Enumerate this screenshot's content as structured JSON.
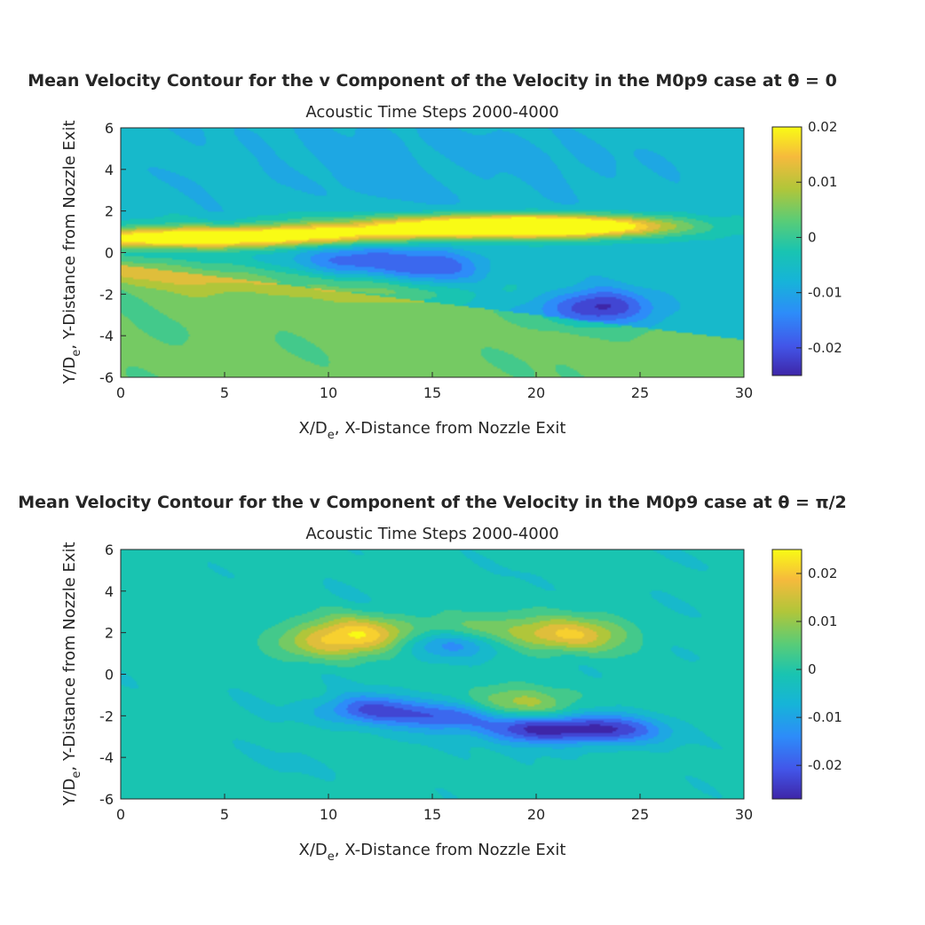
{
  "chart_data": [
    {
      "type": "heatmap",
      "title": "Mean Velocity Contour for the v Component of the Velocity in the M0p9 case at θ = 0",
      "subtitle": "Acoustic Time Steps 2000-4000",
      "xlabel": "X/D",
      "xlabel_sub": "e",
      "xlabel_rest": ", X-Distance from Nozzle Exit",
      "ylabel": "Y/D",
      "ylabel_sub": "e",
      "ylabel_rest": ", Y-Distance from Nozzle Exit",
      "xlim": [
        0,
        30
      ],
      "ylim": [
        -6,
        6
      ],
      "xticks": [
        "0",
        "5",
        "10",
        "15",
        "20",
        "25",
        "30"
      ],
      "yticks": [
        "-6",
        "-4",
        "-2",
        "0",
        "2",
        "4",
        "6"
      ],
      "colorbar": {
        "range": [
          -0.025,
          0.02
        ],
        "ticks": [
          0.02,
          0.01,
          0,
          -0.01,
          -0.02
        ],
        "tick_labels": [
          "0.02",
          "0.01",
          "0",
          "-0.01",
          "-0.02"
        ],
        "colormap": "parula"
      },
      "features": {
        "background": -0.006,
        "jet_start_y": 0.5,
        "upper_shear_layer": [
          {
            "x": 0,
            "y": 0.7,
            "value": 0.012
          },
          {
            "x": 5,
            "y": 0.7,
            "value": 0.013
          },
          {
            "x": 10,
            "y": 0.9,
            "value": 0.011
          },
          {
            "x": 15,
            "y": 1.3,
            "value": 0.008
          },
          {
            "x": 20,
            "y": 1.2,
            "value": 0.014
          },
          {
            "x": 21,
            "y": 1.3,
            "value": 0.016
          }
        ],
        "lower_shear_layer": [
          {
            "x": 0,
            "y": -0.7,
            "value": 0.014
          },
          {
            "x": 5,
            "y": -1.2,
            "value": 0.013
          },
          {
            "x": 10,
            "y": -1.6,
            "value": 0.01
          },
          {
            "x": 13,
            "y": -2.0,
            "value": 0.009
          }
        ],
        "core_minima": [
          {
            "x": 11,
            "y": -0.4,
            "value": -0.018
          },
          {
            "x": 15,
            "y": -0.7,
            "value": -0.018
          },
          {
            "x": 23,
            "y": -2.6,
            "value": -0.024
          }
        ],
        "lower_region_value": 0.004
      }
    },
    {
      "type": "heatmap",
      "title": "Mean Velocity Contour for the v Component of the Velocity in the M0p9 case at θ = π/2",
      "subtitle": "Acoustic Time Steps 2000-4000",
      "xlabel": "X/D",
      "xlabel_sub": "e",
      "xlabel_rest": ", X-Distance from Nozzle Exit",
      "ylabel": "Y/D",
      "ylabel_sub": "e",
      "ylabel_rest": ", Y-Distance from Nozzle Exit",
      "xlim": [
        0,
        30
      ],
      "ylim": [
        -6,
        6
      ],
      "xticks": [
        "0",
        "5",
        "10",
        "15",
        "20",
        "25",
        "30"
      ],
      "yticks": [
        "-6",
        "-4",
        "-2",
        "0",
        "2",
        "4",
        "6"
      ],
      "colorbar": {
        "range": [
          -0.027,
          0.025
        ],
        "ticks": [
          0.02,
          0.01,
          0,
          -0.01,
          -0.02
        ],
        "tick_labels": [
          "0.02",
          "0.01",
          "0",
          "-0.01",
          "-0.02"
        ],
        "colormap": "parula"
      },
      "features": {
        "background": -0.002,
        "positive_lobes": [
          {
            "x": 11.5,
            "y": 2.0,
            "value": 0.018
          },
          {
            "x": 17,
            "y": 2.0,
            "value": 0.012
          },
          {
            "x": 21.5,
            "y": 1.9,
            "value": 0.02
          },
          {
            "x": 19,
            "y": -1.5,
            "value": 0.016
          },
          {
            "x": 10,
            "y": 1.4,
            "value": 0.012
          }
        ],
        "negative_lobes": [
          {
            "x": 16,
            "y": 1.5,
            "value": -0.018
          },
          {
            "x": 12,
            "y": -1.7,
            "value": -0.018
          },
          {
            "x": 16,
            "y": -2.0,
            "value": -0.02
          },
          {
            "x": 20,
            "y": -2.6,
            "value": -0.024
          },
          {
            "x": 23.5,
            "y": -2.7,
            "value": -0.02
          }
        ]
      }
    }
  ]
}
